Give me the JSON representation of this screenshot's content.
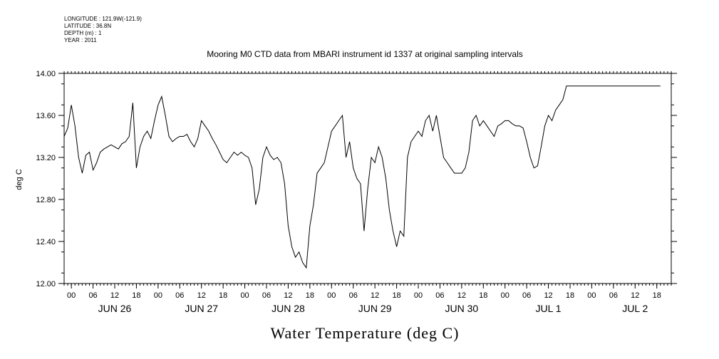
{
  "meta": {
    "longitude": "LONGITUDE : 121.9W(-121.9)",
    "latitude": "LATITUDE : 36.8N",
    "depth": "DEPTH (m) : 1",
    "year": "YEAR : 2011"
  },
  "chart_data": {
    "type": "line",
    "title": "Mooring M0 CTD data from MBARI instrument id 1337 at original sampling intervals",
    "xlabel": "Water Temperature (deg C)",
    "ylabel": "deg C",
    "ylim": [
      12.0,
      14.0
    ],
    "yticks": [
      "12.00",
      "12.40",
      "12.80",
      "13.20",
      "13.60",
      "14.00"
    ],
    "hour_ticks": [
      "00",
      "06",
      "12",
      "18",
      "00",
      "06",
      "12",
      "18",
      "00",
      "06",
      "12",
      "18",
      "00",
      "06",
      "12",
      "18",
      "00",
      "06",
      "12",
      "18",
      "00",
      "06",
      "12",
      "18",
      "00",
      "06",
      "12",
      "18"
    ],
    "day_labels": [
      "JUN 26",
      "JUN 27",
      "JUN 28",
      "JUN 29",
      "JUN 30",
      "JUL  1",
      "JUL  2"
    ],
    "grid": false,
    "series": [
      {
        "x_hours": [
          0,
          1,
          2,
          3,
          4,
          5,
          6,
          7,
          8,
          9,
          10,
          11,
          12,
          13,
          14,
          15,
          16,
          17,
          18,
          19,
          20,
          21,
          22,
          23,
          24,
          25,
          26,
          27,
          28,
          29,
          30,
          31,
          32,
          33,
          34,
          35,
          36,
          37,
          38,
          39,
          40,
          41,
          42,
          43,
          44,
          45,
          46,
          47,
          48,
          49,
          50,
          51,
          52,
          53,
          54,
          55,
          56,
          57,
          58,
          59,
          60,
          61,
          62,
          63,
          64,
          65,
          66,
          67,
          68,
          69,
          70,
          71,
          72,
          73,
          74,
          75,
          76,
          77,
          78,
          79,
          80,
          81,
          82,
          83,
          84,
          85,
          86,
          87,
          88,
          89,
          90,
          91,
          92,
          93,
          94,
          95,
          96,
          97,
          98,
          99,
          100,
          101,
          102,
          103,
          104,
          105,
          106,
          107,
          108,
          109,
          110,
          111,
          112,
          113,
          114,
          115,
          116,
          117,
          118,
          119,
          120,
          121,
          122,
          123,
          124,
          125,
          126,
          127,
          128,
          129,
          130,
          131,
          132,
          133,
          134,
          135,
          136,
          137,
          138,
          139,
          140,
          141,
          142,
          143,
          144,
          145,
          146,
          147,
          148,
          149,
          150,
          151,
          152,
          153,
          154,
          155,
          156,
          157,
          158,
          159,
          160,
          161,
          162,
          163,
          164,
          165,
          166,
          167,
          168
        ],
        "values": [
          13.4,
          13.48,
          13.7,
          13.5,
          13.2,
          13.05,
          13.22,
          13.25,
          13.08,
          13.15,
          13.25,
          13.28,
          13.3,
          13.32,
          13.3,
          13.28,
          13.33,
          13.35,
          13.4,
          13.72,
          13.1,
          13.3,
          13.4,
          13.45,
          13.38,
          13.55,
          13.7,
          13.78,
          13.6,
          13.4,
          13.35,
          13.38,
          13.4,
          13.4,
          13.42,
          13.35,
          13.3,
          13.38,
          13.55,
          13.5,
          13.45,
          13.38,
          13.32,
          13.25,
          13.18,
          13.15,
          13.2,
          13.25,
          13.22,
          13.25,
          13.22,
          13.2,
          13.1,
          12.75,
          12.9,
          13.2,
          13.3,
          13.22,
          13.18,
          13.2,
          13.15,
          12.95,
          12.55,
          12.35,
          12.25,
          12.3,
          12.2,
          12.15,
          12.55,
          12.75,
          13.05,
          13.1,
          13.15,
          13.3,
          13.45,
          13.5,
          13.55,
          13.6,
          13.2,
          13.35,
          13.1,
          13.0,
          12.95,
          12.5,
          12.9,
          13.2,
          13.15,
          13.3,
          13.2,
          13.0,
          12.7,
          12.5,
          12.35,
          12.5,
          12.45,
          13.2,
          13.35,
          13.4,
          13.45,
          13.4,
          13.55,
          13.6,
          13.45,
          13.6,
          13.4,
          13.2,
          13.15,
          13.1,
          13.05,
          13.05,
          13.05,
          13.1,
          13.25,
          13.55,
          13.6,
          13.5,
          13.55,
          13.5,
          13.45,
          13.4,
          13.5,
          13.52,
          13.55,
          13.55,
          13.52,
          13.5,
          13.5,
          13.48,
          13.35,
          13.2,
          13.1,
          13.12,
          13.3,
          13.5,
          13.6,
          13.55,
          13.65,
          13.7,
          13.75,
          13.88,
          13.88,
          13.88,
          13.88,
          13.88,
          13.88,
          13.88,
          13.88,
          13.88,
          13.88,
          13.88,
          13.88,
          13.88,
          13.88,
          13.88,
          13.88,
          13.88,
          13.88,
          13.88,
          13.88,
          13.88,
          13.88,
          13.88,
          13.88,
          13.88,
          13.88,
          13.88,
          13.88,
          13.88,
          13.88
        ]
      }
    ]
  }
}
